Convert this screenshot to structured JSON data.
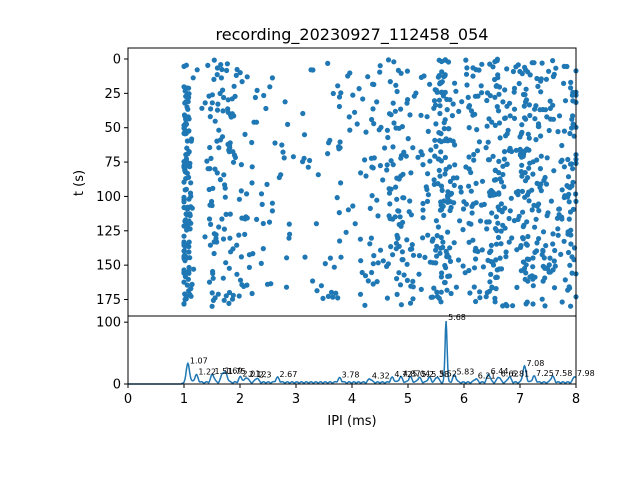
{
  "chart_data": [
    {
      "type": "scatter",
      "title": "recording_20230927_112458_054",
      "xlabel": "",
      "ylabel": "t (s)",
      "xlim": [
        0,
        8
      ],
      "ylim": [
        187,
        -8
      ],
      "y_inverted": true,
      "yticks": [
        "0",
        "25",
        "50",
        "75",
        "100",
        "125",
        "150",
        "175"
      ],
      "ytick_values": [
        0,
        25,
        50,
        75,
        100,
        125,
        150,
        175
      ],
      "color": "#1f77b4",
      "point_count": 1100,
      "t_range": [
        0,
        180
      ],
      "x_range": [
        1.0,
        8.0
      ],
      "density_notes": "points are dense in columns near x=1.05, 1.6, 4.5, 5.7, 6.6, 7.0 and sparse between x=2.2 and 4.0"
    },
    {
      "type": "line",
      "title": "",
      "xlabel": "IPI (ms)",
      "ylabel": "",
      "xlim": [
        0,
        8
      ],
      "ylim": [
        0,
        110
      ],
      "xticks": [
        "0",
        "1",
        "2",
        "3",
        "4",
        "5",
        "6",
        "7",
        "8"
      ],
      "xtick_values": [
        0,
        1,
        2,
        3,
        4,
        5,
        6,
        7,
        8
      ],
      "yticks": [
        "0",
        "100"
      ],
      "ytick_values": [
        0,
        100
      ],
      "color": "#1f77b4",
      "peaks": [
        {
          "x": 1.07,
          "y": 30,
          "label": "1.07"
        },
        {
          "x": 1.22,
          "y": 12,
          "label": "1.22"
        },
        {
          "x": 1.51,
          "y": 13,
          "label": "1.51"
        },
        {
          "x": 1.69,
          "y": 14,
          "label": "1.69"
        },
        {
          "x": 1.75,
          "y": 13,
          "label": "1.75"
        },
        {
          "x": 2.01,
          "y": 9,
          "label": "2.01"
        },
        {
          "x": 2.12,
          "y": 8,
          "label": "2.12"
        },
        {
          "x": 2.3,
          "y": 7,
          "label": "2.3"
        },
        {
          "x": 2.67,
          "y": 8,
          "label": "2.67"
        },
        {
          "x": 3.78,
          "y": 7,
          "label": "3.78"
        },
        {
          "x": 4.32,
          "y": 6,
          "label": "4.32"
        },
        {
          "x": 4.72,
          "y": 8,
          "label": "4.72"
        },
        {
          "x": 4.87,
          "y": 9,
          "label": "4.87"
        },
        {
          "x": 5.04,
          "y": 9,
          "label": "5.04"
        },
        {
          "x": 5.2,
          "y": 8,
          "label": "5.2"
        },
        {
          "x": 5.38,
          "y": 8,
          "label": "5.38"
        },
        {
          "x": 5.52,
          "y": 9,
          "label": "5.52"
        },
        {
          "x": 5.68,
          "y": 100,
          "label": "5.68"
        },
        {
          "x": 5.83,
          "y": 12,
          "label": "5.83"
        },
        {
          "x": 6.44,
          "y": 13,
          "label": "6.44"
        },
        {
          "x": 6.21,
          "y": 6,
          "label": "6.21"
        },
        {
          "x": 6.62,
          "y": 9,
          "label": "6.62"
        },
        {
          "x": 6.81,
          "y": 9,
          "label": "6.81"
        },
        {
          "x": 7.08,
          "y": 26,
          "label": "7.08"
        },
        {
          "x": 7.25,
          "y": 10,
          "label": "7.25"
        },
        {
          "x": 7.58,
          "y": 10,
          "label": "7.58"
        },
        {
          "x": 7.98,
          "y": 10,
          "label": "7.98"
        }
      ]
    }
  ]
}
